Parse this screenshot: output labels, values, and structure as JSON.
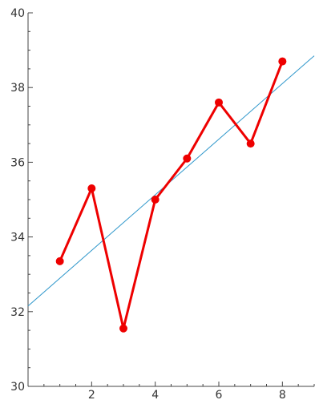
{
  "chart_data": {
    "type": "line",
    "x": [
      1,
      2,
      3,
      4,
      5,
      6,
      7,
      8
    ],
    "series": [
      {
        "values": [
          33.35,
          35.3,
          31.55,
          35.0,
          36.1,
          37.6,
          36.5,
          38.7
        ],
        "color": "#ee0000",
        "markers": true
      }
    ],
    "trendline": {
      "x": [
        0,
        9
      ],
      "y": [
        32.15,
        38.85
      ],
      "color": "#3399cc"
    },
    "xlim": [
      0,
      9
    ],
    "ylim": [
      30,
      40
    ],
    "xticks": [
      2,
      4,
      6,
      8
    ],
    "yticks": [
      30,
      32,
      34,
      36,
      38,
      40
    ],
    "x_minor_step": 0.5,
    "y_minor_step": 0.5,
    "grid": false,
    "title": "",
    "xlabel": "",
    "ylabel": ""
  }
}
